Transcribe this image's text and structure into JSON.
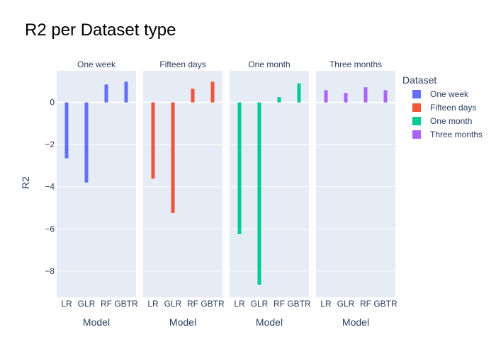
{
  "chart_data": {
    "type": "bar",
    "title": "R2 per Dataset type",
    "xlabel": "Model",
    "ylabel": "R2",
    "categories": [
      "LR",
      "GLR",
      "RF",
      "GBTR"
    ],
    "facets": [
      "One week",
      "Fifteen days",
      "One month",
      "Three months"
    ],
    "ylim": [
      -9.25,
      1.5
    ],
    "yticks": [
      0,
      -2,
      -4,
      -6,
      -8
    ],
    "ytick_labels": [
      "0",
      "−2",
      "−4",
      "−6",
      "−8"
    ],
    "grid": true,
    "legend": {
      "title": "Dataset",
      "placement": "right"
    },
    "series": [
      {
        "name": "One week",
        "color": "#636efa",
        "values": [
          -2.65,
          -3.8,
          0.85,
          0.98
        ]
      },
      {
        "name": "Fifteen days",
        "color": "#ef553b",
        "values": [
          -3.62,
          -5.25,
          0.65,
          0.98
        ]
      },
      {
        "name": "One month",
        "color": "#00cc96",
        "values": [
          -6.25,
          -8.65,
          0.25,
          0.9
        ]
      },
      {
        "name": "Three months",
        "color": "#ab63fa",
        "values": [
          0.58,
          0.45,
          0.72,
          0.58
        ]
      }
    ],
    "colors": {
      "plot_bg": "#e5ecf6",
      "grid": "#ffffff",
      "text": "#2a3f5f"
    }
  }
}
